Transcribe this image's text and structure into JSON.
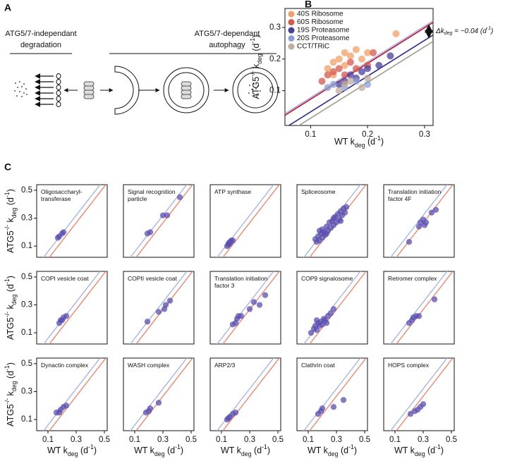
{
  "diagram": {
    "label": "A",
    "left_title": [
      "ATG5/7-independant",
      "degradation"
    ],
    "right_title": [
      "ATG5/7-dependant",
      "autophagy"
    ]
  },
  "chart_data": [
    {
      "type": "scatter",
      "panel_label": "B",
      "legend": "upper left",
      "xlim": [
        0.055,
        0.315
      ],
      "ylim": [
        -0.01,
        0.36
      ],
      "xticks": [
        0.1,
        0.2,
        0.3
      ],
      "yticks": [
        0.1,
        0.2,
        0.3
      ],
      "xlabel": [
        "WT k",
        {
          "text": "deg",
          "script": "sub"
        },
        " (d",
        {
          "text": "-1",
          "script": "super"
        },
        ")"
      ],
      "ylabel": [
        "ATG5",
        {
          "text": "-/-",
          "script": "super"
        },
        " k",
        {
          "text": "deg",
          "script": "sub"
        },
        " (d",
        {
          "text": "-1",
          "script": "super"
        },
        ")"
      ],
      "annotation": [
        "Δk",
        {
          "text": "deg",
          "script": "sub"
        },
        " = ~0.04 (d",
        {
          "text": "-1",
          "script": "super"
        },
        ")"
      ],
      "reference_lines": [
        {
          "color": "#c8102e",
          "slope": 1.13,
          "intercept": -0.04
        },
        {
          "color": "#9fb0e0",
          "slope": 1.13,
          "intercept": -0.035
        },
        {
          "color": "#2c2a8c",
          "slope": 1.13,
          "intercept": -0.08
        },
        {
          "color": "#a89a8a",
          "slope": 1.13,
          "intercept": -0.1
        }
      ],
      "series": [
        {
          "name": "40S Ribosome",
          "color": "#f2a067",
          "x": [
            0.13,
            0.14,
            0.15,
            0.16,
            0.17,
            0.18,
            0.19,
            0.2,
            0.14,
            0.16,
            0.25
          ],
          "values": [
            0.17,
            0.19,
            0.2,
            0.22,
            0.21,
            0.23,
            0.2,
            0.22,
            0.15,
            0.18,
            0.28
          ]
        },
        {
          "name": "60S Ribosome",
          "color": "#d6584c",
          "x": [
            0.12,
            0.13,
            0.14,
            0.15,
            0.16,
            0.17,
            0.18,
            0.2,
            0.21
          ],
          "values": [
            0.13,
            0.15,
            0.16,
            0.17,
            0.15,
            0.19,
            0.17,
            0.18,
            0.22
          ]
        },
        {
          "name": "19S Proteasome",
          "color": "#4b3f9e",
          "x": [
            0.15,
            0.16,
            0.17,
            0.18,
            0.19,
            0.2,
            0.22,
            0.24
          ],
          "values": [
            0.12,
            0.13,
            0.15,
            0.14,
            0.16,
            0.17,
            0.18,
            0.21
          ]
        },
        {
          "name": "20S Proteasome",
          "color": "#8e9fd6",
          "x": [
            0.13,
            0.14,
            0.16,
            0.18,
            0.2
          ],
          "values": [
            0.11,
            0.12,
            0.11,
            0.13,
            0.12
          ]
        },
        {
          "name": "CCT/TRiC",
          "color": "#bfae9c",
          "x": [
            0.15,
            0.16,
            0.17,
            0.19,
            0.2
          ],
          "values": [
            0.1,
            0.12,
            0.13,
            0.11,
            0.14
          ]
        }
      ]
    },
    {
      "type": "scatter",
      "panel_label": "C",
      "title": [
        "Oligosaccharyl-",
        "transferase"
      ],
      "xlim": [
        0.02,
        0.52
      ],
      "ylim": [
        0.02,
        0.54
      ],
      "yticks": [
        0.1,
        0.3,
        0.5
      ],
      "ylabel": [
        "ATG5",
        {
          "text": "-/-",
          "script": "super"
        },
        " k",
        {
          "text": "deg",
          "script": "sub"
        },
        " (d",
        {
          "text": "-1",
          "script": "super"
        },
        ")"
      ],
      "reference_lines": [
        {
          "color": "#a8b6e6",
          "slope": 1.3,
          "intercept": -0.07
        },
        {
          "color": "#ec8a6e",
          "slope": 1.3,
          "intercept": -0.123
        }
      ],
      "series": [
        {
          "color": "#5a4fb0",
          "x": [
            0.17,
            0.18,
            0.2,
            0.21
          ],
          "values": [
            0.16,
            0.17,
            0.19,
            0.2
          ]
        }
      ]
    },
    {
      "type": "scatter",
      "title": [
        "Signal recognition",
        "particle"
      ],
      "xlim": [
        0.02,
        0.52
      ],
      "ylim": [
        0.02,
        0.54
      ],
      "reference_lines": [
        {
          "color": "#a8b6e6",
          "slope": 1.3,
          "intercept": -0.07
        },
        {
          "color": "#ec8a6e",
          "slope": 1.3,
          "intercept": -0.123
        }
      ],
      "series": [
        {
          "color": "#5a4fb0",
          "x": [
            0.19,
            0.21,
            0.3,
            0.33,
            0.42
          ],
          "values": [
            0.19,
            0.2,
            0.32,
            0.32,
            0.45
          ]
        }
      ]
    },
    {
      "type": "scatter",
      "title": [
        "ATP synthase"
      ],
      "xlim": [
        0.02,
        0.52
      ],
      "ylim": [
        0.02,
        0.54
      ],
      "reference_lines": [
        {
          "color": "#a8b6e6",
          "slope": 1.3,
          "intercept": -0.07
        },
        {
          "color": "#ec8a6e",
          "slope": 1.3,
          "intercept": -0.123
        }
      ],
      "series": [
        {
          "color": "#5a4fb0",
          "x": [
            0.14,
            0.15,
            0.16,
            0.17,
            0.18,
            0.15,
            0.16
          ],
          "values": [
            0.1,
            0.11,
            0.13,
            0.14,
            0.14,
            0.12,
            0.12
          ]
        }
      ]
    },
    {
      "type": "scatter",
      "title": [
        "Spliceosome"
      ],
      "xlim": [
        0.02,
        0.52
      ],
      "ylim": [
        0.02,
        0.54
      ],
      "reference_lines": [
        {
          "color": "#a8b6e6",
          "slope": 1.3,
          "intercept": -0.07
        },
        {
          "color": "#ec8a6e",
          "slope": 1.3,
          "intercept": -0.123
        }
      ],
      "series": [
        {
          "color": "#5a4fb0",
          "x": [
            0.15,
            0.16,
            0.17,
            0.18,
            0.19,
            0.2,
            0.2,
            0.21,
            0.22,
            0.23,
            0.24,
            0.25,
            0.26,
            0.27,
            0.28,
            0.29,
            0.3,
            0.31,
            0.32,
            0.33,
            0.34,
            0.35,
            0.36,
            0.37,
            0.18,
            0.23,
            0.28,
            0.33
          ],
          "values": [
            0.15,
            0.13,
            0.17,
            0.14,
            0.19,
            0.16,
            0.22,
            0.2,
            0.18,
            0.24,
            0.21,
            0.27,
            0.23,
            0.28,
            0.25,
            0.31,
            0.27,
            0.33,
            0.29,
            0.35,
            0.32,
            0.37,
            0.34,
            0.38,
            0.21,
            0.19,
            0.3,
            0.28
          ]
        }
      ]
    },
    {
      "type": "scatter",
      "title": [
        "Translation initiation",
        "factor 4F"
      ],
      "xlim": [
        0.02,
        0.52
      ],
      "ylim": [
        0.02,
        0.54
      ],
      "reference_lines": [
        {
          "color": "#a8b6e6",
          "slope": 1.3,
          "intercept": -0.07
        },
        {
          "color": "#ec8a6e",
          "slope": 1.3,
          "intercept": -0.123
        }
      ],
      "series": [
        {
          "color": "#5a4fb0",
          "x": [
            0.2,
            0.27,
            0.28,
            0.3,
            0.31,
            0.32,
            0.36,
            0.39
          ],
          "values": [
            0.13,
            0.24,
            0.27,
            0.29,
            0.25,
            0.27,
            0.34,
            0.36
          ]
        }
      ]
    },
    {
      "type": "scatter",
      "title": [
        "COPI vesicle coat"
      ],
      "xlim": [
        0.02,
        0.52
      ],
      "ylim": [
        0.02,
        0.54
      ],
      "yticks": [
        0.1,
        0.3,
        0.5
      ],
      "ylabel": [
        "ATG5",
        {
          "text": "-/-",
          "script": "super"
        },
        " k",
        {
          "text": "deg",
          "script": "sub"
        },
        " (d",
        {
          "text": "-1",
          "script": "super"
        },
        ")"
      ],
      "reference_lines": [
        {
          "color": "#a8b6e6",
          "slope": 1.3,
          "intercept": -0.07
        },
        {
          "color": "#ec8a6e",
          "slope": 1.3,
          "intercept": -0.123
        }
      ],
      "series": [
        {
          "color": "#5a4fb0",
          "x": [
            0.18,
            0.19,
            0.2,
            0.21,
            0.23
          ],
          "values": [
            0.17,
            0.19,
            0.19,
            0.21,
            0.22
          ]
        }
      ]
    },
    {
      "type": "scatter",
      "title": [
        "COPII vesicle coat"
      ],
      "xlim": [
        0.02,
        0.52
      ],
      "ylim": [
        0.02,
        0.54
      ],
      "reference_lines": [
        {
          "color": "#a8b6e6",
          "slope": 1.3,
          "intercept": -0.07
        },
        {
          "color": "#ec8a6e",
          "slope": 1.3,
          "intercept": -0.123
        }
      ],
      "series": [
        {
          "color": "#5a4fb0",
          "x": [
            0.19,
            0.27,
            0.31,
            0.32,
            0.35
          ],
          "values": [
            0.18,
            0.25,
            0.27,
            0.3,
            0.33
          ]
        }
      ]
    },
    {
      "type": "scatter",
      "title": [
        "Translation initiation",
        "factor 3"
      ],
      "xlim": [
        0.02,
        0.52
      ],
      "ylim": [
        0.02,
        0.54
      ],
      "reference_lines": [
        {
          "color": "#a8b6e6",
          "slope": 1.3,
          "intercept": -0.07
        },
        {
          "color": "#ec8a6e",
          "slope": 1.3,
          "intercept": -0.123
        }
      ],
      "series": [
        {
          "color": "#5a4fb0",
          "x": [
            0.18,
            0.2,
            0.21,
            0.22,
            0.24,
            0.3,
            0.33,
            0.37,
            0.41
          ],
          "values": [
            0.16,
            0.17,
            0.2,
            0.22,
            0.22,
            0.27,
            0.32,
            0.3,
            0.37
          ]
        }
      ]
    },
    {
      "type": "scatter",
      "title": [
        "COP9 signalosome"
      ],
      "xlim": [
        0.02,
        0.52
      ],
      "ylim": [
        0.02,
        0.54
      ],
      "reference_lines": [
        {
          "color": "#a8b6e6",
          "slope": 1.3,
          "intercept": -0.07
        },
        {
          "color": "#ec8a6e",
          "slope": 1.3,
          "intercept": -0.123
        }
      ],
      "series": [
        {
          "color": "#5a4fb0",
          "x": [
            0.12,
            0.14,
            0.15,
            0.16,
            0.17,
            0.18,
            0.19,
            0.2,
            0.21,
            0.22,
            0.24,
            0.26,
            0.28,
            0.16,
            0.23
          ],
          "values": [
            0.1,
            0.13,
            0.15,
            0.12,
            0.17,
            0.15,
            0.18,
            0.16,
            0.2,
            0.19,
            0.22,
            0.24,
            0.27,
            0.19,
            0.17
          ]
        }
      ]
    },
    {
      "type": "scatter",
      "title": [
        "Retromer complex"
      ],
      "xlim": [
        0.02,
        0.52
      ],
      "ylim": [
        0.02,
        0.54
      ],
      "reference_lines": [
        {
          "color": "#a8b6e6",
          "slope": 1.3,
          "intercept": -0.07
        },
        {
          "color": "#ec8a6e",
          "slope": 1.3,
          "intercept": -0.123
        }
      ],
      "series": [
        {
          "color": "#5a4fb0",
          "x": [
            0.2,
            0.22,
            0.23,
            0.25,
            0.27,
            0.38
          ],
          "values": [
            0.17,
            0.19,
            0.21,
            0.22,
            0.22,
            0.34
          ]
        }
      ]
    },
    {
      "type": "scatter",
      "title": [
        "Dynactin complex"
      ],
      "xlim": [
        0.02,
        0.52
      ],
      "ylim": [
        0.02,
        0.54
      ],
      "xticks": [
        0.1,
        0.3,
        0.5
      ],
      "yticks": [
        0.1,
        0.3,
        0.5
      ],
      "xlabel": [
        "WT k",
        {
          "text": "deg",
          "script": "sub"
        },
        " (d",
        {
          "text": "-1",
          "script": "super"
        },
        ")"
      ],
      "ylabel": [
        "ATG5",
        {
          "text": "-/-",
          "script": "super"
        },
        " k",
        {
          "text": "deg",
          "script": "sub"
        },
        " (d",
        {
          "text": "-1",
          "script": "super"
        },
        ")"
      ],
      "reference_lines": [
        {
          "color": "#a8b6e6",
          "slope": 1.3,
          "intercept": -0.07
        },
        {
          "color": "#ec8a6e",
          "slope": 1.3,
          "intercept": -0.123
        }
      ],
      "series": [
        {
          "color": "#5a4fb0",
          "x": [
            0.16,
            0.18,
            0.19,
            0.21,
            0.23
          ],
          "values": [
            0.15,
            0.15,
            0.17,
            0.19,
            0.2
          ]
        }
      ]
    },
    {
      "type": "scatter",
      "title": [
        "WASH complex"
      ],
      "xlim": [
        0.02,
        0.52
      ],
      "ylim": [
        0.02,
        0.54
      ],
      "xticks": [
        0.1,
        0.3,
        0.5
      ],
      "xlabel": [
        "WT k",
        {
          "text": "deg",
          "script": "sub"
        },
        " (d",
        {
          "text": "-1",
          "script": "super"
        },
        ")"
      ],
      "reference_lines": [
        {
          "color": "#a8b6e6",
          "slope": 1.3,
          "intercept": -0.07
        },
        {
          "color": "#ec8a6e",
          "slope": 1.3,
          "intercept": -0.123
        }
      ],
      "series": [
        {
          "color": "#5a4fb0",
          "x": [
            0.18,
            0.2,
            0.21,
            0.27
          ],
          "values": [
            0.15,
            0.16,
            0.18,
            0.22
          ]
        }
      ]
    },
    {
      "type": "scatter",
      "title": [
        "ARP2/3"
      ],
      "xlim": [
        0.02,
        0.52
      ],
      "ylim": [
        0.02,
        0.54
      ],
      "xticks": [
        0.1,
        0.3,
        0.5
      ],
      "xlabel": [
        "WT k",
        {
          "text": "deg",
          "script": "sub"
        },
        " (d",
        {
          "text": "-1",
          "script": "super"
        },
        ")"
      ],
      "reference_lines": [
        {
          "color": "#a8b6e6",
          "slope": 1.3,
          "intercept": -0.07
        },
        {
          "color": "#ec8a6e",
          "slope": 1.3,
          "intercept": -0.123
        }
      ],
      "series": [
        {
          "color": "#5a4fb0",
          "x": [
            0.14,
            0.15,
            0.16,
            0.18,
            0.2
          ],
          "values": [
            0.1,
            0.11,
            0.12,
            0.14,
            0.15
          ]
        }
      ]
    },
    {
      "type": "scatter",
      "title": [
        "Clathrin coat"
      ],
      "xlim": [
        0.02,
        0.52
      ],
      "ylim": [
        0.02,
        0.54
      ],
      "xticks": [
        0.1,
        0.3,
        0.5
      ],
      "xlabel": [
        "WT k",
        {
          "text": "deg",
          "script": "sub"
        },
        " (d",
        {
          "text": "-1",
          "script": "super"
        },
        ")"
      ],
      "reference_lines": [
        {
          "color": "#a8b6e6",
          "slope": 1.3,
          "intercept": -0.07
        },
        {
          "color": "#ec8a6e",
          "slope": 1.3,
          "intercept": -0.123
        }
      ],
      "series": [
        {
          "color": "#5a4fb0",
          "x": [
            0.17,
            0.19,
            0.2,
            0.28,
            0.35
          ],
          "values": [
            0.14,
            0.16,
            0.18,
            0.19,
            0.24
          ]
        }
      ]
    },
    {
      "type": "scatter",
      "title": [
        "HOPS complex"
      ],
      "xlim": [
        0.02,
        0.52
      ],
      "ylim": [
        0.02,
        0.54
      ],
      "xticks": [
        0.1,
        0.3,
        0.5
      ],
      "xlabel": [
        "WT k",
        {
          "text": "deg",
          "script": "sub"
        },
        " (d",
        {
          "text": "-1",
          "script": "super"
        },
        ")"
      ],
      "reference_lines": [
        {
          "color": "#a8b6e6",
          "slope": 1.3,
          "intercept": -0.07
        },
        {
          "color": "#ec8a6e",
          "slope": 1.3,
          "intercept": -0.123
        }
      ],
      "series": [
        {
          "color": "#5a4fb0",
          "x": [
            0.21,
            0.24,
            0.26,
            0.28,
            0.3
          ],
          "values": [
            0.14,
            0.16,
            0.17,
            0.19,
            0.21
          ]
        }
      ]
    }
  ]
}
